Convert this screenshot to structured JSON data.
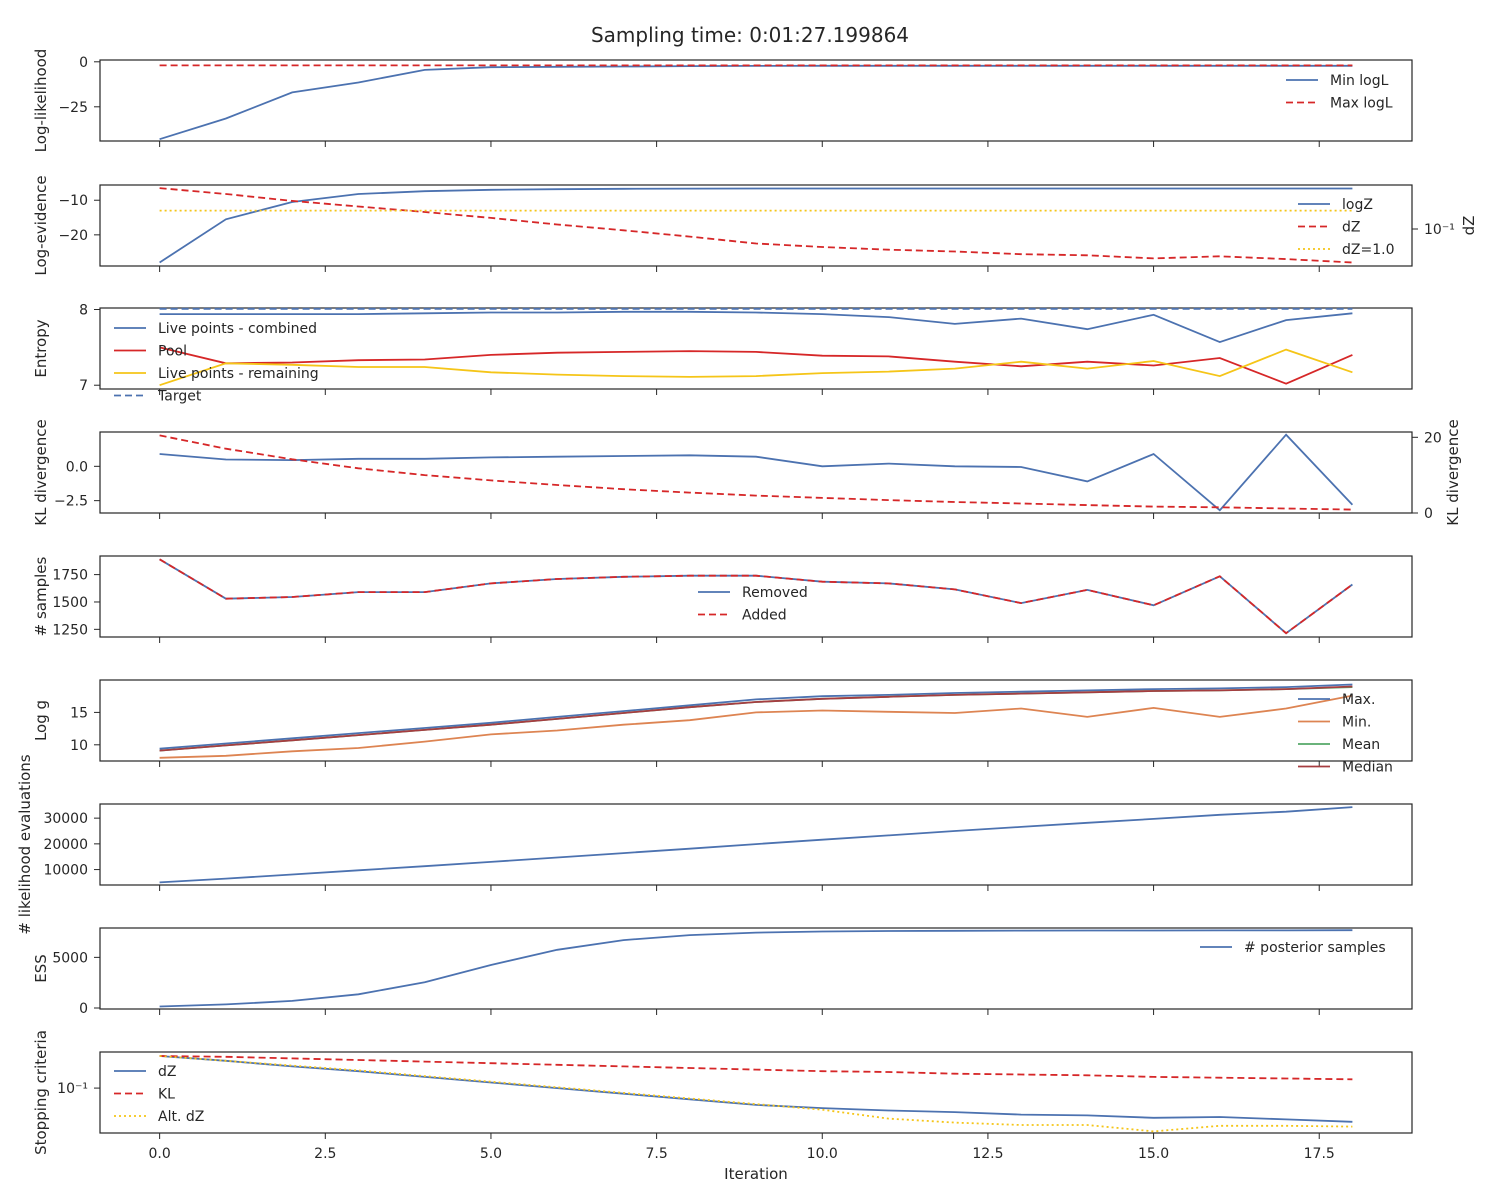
{
  "title": "Sampling time: 0:01:27.199864",
  "xlabel": "Iteration",
  "x_ticks": [
    "0.0",
    "2.5",
    "5.0",
    "7.5",
    "10.0",
    "12.5",
    "15.0",
    "17.5"
  ],
  "colors": {
    "blue": "#4c72b0",
    "red": "#d62728",
    "yellow": "#f5c518",
    "orange": "#dd8452",
    "green": "#55a868",
    "darkred": "#a63d40"
  },
  "chart_data": [
    {
      "type": "line",
      "ylabel": "Log-likelihood",
      "yticks": [
        "0",
        "−25"
      ],
      "ytick_values": [
        0,
        -25
      ],
      "ylim": [
        -44,
        1
      ],
      "x": [
        0,
        1,
        2,
        3,
        4,
        5,
        6,
        7,
        8,
        9,
        10,
        11,
        12,
        13,
        14,
        15,
        16,
        17,
        18
      ],
      "series": [
        {
          "name": "Min logL",
          "style": "solid",
          "color": "#4c72b0",
          "values": [
            -43,
            -31.5,
            -17,
            -11.5,
            -4.5,
            -3,
            -2.8,
            -2.6,
            -2.4,
            -2.3,
            -2.25,
            -2.2,
            -2.2,
            -2.2,
            -2.2,
            -2.2,
            -2.2,
            -2.2,
            -2.2
          ]
        },
        {
          "name": "Max logL",
          "style": "dashed",
          "color": "#d62728",
          "values": [
            -2,
            -2,
            -2,
            -2,
            -2,
            -2,
            -2,
            -2,
            -2,
            -2,
            -2,
            -2,
            -2,
            -2,
            -2,
            -2,
            -2,
            -2,
            -2
          ]
        }
      ],
      "legend": "upper right"
    },
    {
      "type": "line",
      "ylabel": "Log-evidence",
      "ylabel_right": "dZ",
      "yticks": [
        "−10",
        "−20"
      ],
      "ytick_values": [
        -10,
        -20
      ],
      "ylim": [
        -29,
        -5.6
      ],
      "yticks_right": [
        "10⁻¹"
      ],
      "x": [
        0,
        1,
        2,
        3,
        4,
        5,
        6,
        7,
        8,
        9,
        10,
        11,
        12,
        13,
        14,
        15,
        16,
        17,
        18
      ],
      "series": [
        {
          "name": "logZ",
          "style": "solid",
          "color": "#4c72b0",
          "values": [
            -28,
            -15.5,
            -10.5,
            -8.2,
            -7.4,
            -7.0,
            -6.8,
            -6.7,
            -6.65,
            -6.62,
            -6.61,
            -6.6,
            -6.6,
            -6.6,
            -6.6,
            -6.6,
            -6.6,
            -6.6,
            -6.6
          ]
        },
        {
          "name": "dZ",
          "style": "dashed",
          "color": "#d62728",
          "axis": "right",
          "values": [
            -6.5,
            -8.2,
            -10.2,
            -11.8,
            -13.4,
            -15.1,
            -17.0,
            -18.7,
            -20.5,
            -22.5,
            -23.5,
            -24.3,
            -24.8,
            -25.6,
            -25.9,
            -26.8,
            -26.2,
            -27.0,
            -28.0
          ]
        },
        {
          "name": "dZ=1.0",
          "style": "dotted",
          "color": "#f5c518",
          "axis": "right",
          "values": [
            -13,
            -13,
            -13,
            -13,
            -13,
            -13,
            -13,
            -13,
            -13,
            -13,
            -13,
            -13,
            -13,
            -13,
            -13,
            -13,
            -13,
            -13,
            -13
          ]
        }
      ],
      "legend": "right"
    },
    {
      "type": "line",
      "ylabel": "Entropy",
      "yticks": [
        "8",
        "7"
      ],
      "ytick_values": [
        8,
        7
      ],
      "ylim": [
        6.95,
        8.02
      ],
      "x": [
        0,
        1,
        2,
        3,
        4,
        5,
        6,
        7,
        8,
        9,
        10,
        11,
        12,
        13,
        14,
        15,
        16,
        17,
        18
      ],
      "series": [
        {
          "name": "Live points - combined",
          "style": "solid",
          "color": "#4c72b0",
          "values": [
            7.94,
            7.94,
            7.94,
            7.94,
            7.95,
            7.96,
            7.96,
            7.97,
            7.97,
            7.96,
            7.94,
            7.9,
            7.81,
            7.88,
            7.74,
            7.93,
            7.57,
            7.86,
            7.95
          ]
        },
        {
          "name": "Pool",
          "style": "solid",
          "color": "#d62728",
          "values": [
            7.5,
            7.29,
            7.3,
            7.33,
            7.34,
            7.4,
            7.43,
            7.44,
            7.45,
            7.44,
            7.39,
            7.38,
            7.31,
            7.25,
            7.31,
            7.26,
            7.36,
            7.02,
            7.4
          ]
        },
        {
          "name": "Live points - remaining",
          "style": "solid",
          "color": "#f5c518",
          "values": [
            7.0,
            7.29,
            7.27,
            7.24,
            7.24,
            7.17,
            7.14,
            7.12,
            7.11,
            7.12,
            7.16,
            7.18,
            7.22,
            7.31,
            7.22,
            7.32,
            7.12,
            7.47,
            7.17
          ]
        },
        {
          "name": "Target",
          "style": "dashed",
          "color": "#4c72b0",
          "values": [
            8.01,
            8.01,
            8.01,
            8.01,
            8.01,
            8.01,
            8.01,
            8.01,
            8.01,
            8.01,
            8.01,
            8.01,
            8.01,
            8.01,
            8.01,
            8.01,
            8.01,
            8.01,
            8.01
          ]
        }
      ],
      "legend": "upper left"
    },
    {
      "type": "line",
      "ylabel": "KL divergence",
      "ylabel_right": "KL divergence",
      "yticks": [
        "0.0",
        "−2.5"
      ],
      "ytick_values": [
        0,
        -2.5
      ],
      "ylim": [
        -3.4,
        2.5
      ],
      "yticks_right": [
        "20",
        "0"
      ],
      "ytick_values_right": [
        20,
        0
      ],
      "ylim_right": [
        0,
        21.4
      ],
      "x": [
        0,
        1,
        2,
        3,
        4,
        5,
        6,
        7,
        8,
        9,
        10,
        11,
        12,
        13,
        14,
        15,
        16,
        17,
        18
      ],
      "series": [
        {
          "name": "",
          "style": "solid",
          "color": "#4c72b0",
          "values": [
            0.9,
            0.5,
            0.45,
            0.55,
            0.55,
            0.65,
            0.7,
            0.75,
            0.8,
            0.7,
            0.0,
            0.2,
            0.0,
            -0.05,
            -1.1,
            0.9,
            -3.2,
            2.3,
            -2.8
          ]
        },
        {
          "name": "",
          "style": "dashed",
          "color": "#d62728",
          "axis": "right",
          "values": [
            20.5,
            17.0,
            14.2,
            11.8,
            10.0,
            8.6,
            7.4,
            6.3,
            5.4,
            4.6,
            4.0,
            3.4,
            2.9,
            2.5,
            2.1,
            1.7,
            1.5,
            1.2,
            0.9
          ]
        }
      ]
    },
    {
      "type": "line",
      "ylabel": "# samples",
      "yticks": [
        "1750",
        "1500",
        "1250"
      ],
      "ytick_values": [
        1750,
        1500,
        1250
      ],
      "ylim": [
        1180,
        1920
      ],
      "x": [
        0,
        1,
        2,
        3,
        4,
        5,
        6,
        7,
        8,
        9,
        10,
        11,
        12,
        13,
        14,
        15,
        16,
        17,
        18
      ],
      "series": [
        {
          "name": "Removed",
          "style": "solid",
          "color": "#4c72b0",
          "values": [
            1890,
            1530,
            1545,
            1590,
            1590,
            1670,
            1710,
            1730,
            1740,
            1740,
            1685,
            1670,
            1615,
            1490,
            1610,
            1470,
            1735,
            1215,
            1660
          ]
        },
        {
          "name": "Added",
          "style": "dashed",
          "color": "#d62728",
          "values": [
            1890,
            1530,
            1545,
            1590,
            1590,
            1670,
            1710,
            1730,
            1740,
            1740,
            1685,
            1670,
            1615,
            1490,
            1610,
            1470,
            1735,
            1215,
            1660
          ]
        }
      ],
      "legend": "center"
    },
    {
      "type": "line",
      "ylabel": "Log g",
      "yticks": [
        "15",
        "10"
      ],
      "ytick_values": [
        15,
        10
      ],
      "ylim": [
        7.5,
        20.0
      ],
      "x": [
        0,
        1,
        2,
        3,
        4,
        5,
        6,
        7,
        8,
        9,
        10,
        11,
        12,
        13,
        14,
        15,
        16,
        17,
        18
      ],
      "series": [
        {
          "name": "Max.",
          "style": "solid",
          "color": "#4c72b0",
          "values": [
            9.4,
            10.2,
            11.0,
            11.8,
            12.6,
            13.4,
            14.3,
            15.2,
            16.1,
            17.0,
            17.5,
            17.7,
            18.0,
            18.2,
            18.4,
            18.6,
            18.7,
            18.9,
            19.3
          ]
        },
        {
          "name": "Min.",
          "style": "solid",
          "color": "#dd8452",
          "values": [
            8.0,
            8.3,
            9.0,
            9.5,
            10.5,
            11.6,
            12.2,
            13.1,
            13.8,
            15.0,
            15.3,
            15.1,
            14.9,
            15.6,
            14.3,
            15.7,
            14.3,
            15.6,
            17.6
          ]
        },
        {
          "name": "Mean",
          "style": "solid",
          "color": "#55a868",
          "values": [
            9.1,
            9.9,
            10.7,
            11.5,
            12.3,
            13.1,
            14.0,
            14.9,
            15.8,
            16.6,
            17.1,
            17.4,
            17.7,
            17.9,
            18.1,
            18.3,
            18.4,
            18.6,
            18.9
          ]
        },
        {
          "name": "Median",
          "style": "solid",
          "color": "#a63d40",
          "values": [
            9.1,
            9.9,
            10.7,
            11.5,
            12.3,
            13.1,
            14.0,
            14.9,
            15.8,
            16.6,
            17.1,
            17.4,
            17.7,
            17.9,
            18.1,
            18.3,
            18.4,
            18.6,
            19.0
          ]
        }
      ],
      "legend": "right"
    },
    {
      "type": "line",
      "ylabel": "# likelihood evaluations",
      "yticks": [
        "30000",
        "20000",
        "10000"
      ],
      "ytick_values": [
        30000,
        20000,
        10000
      ],
      "ylim": [
        4000,
        35500
      ],
      "x": [
        0,
        1,
        2,
        3,
        4,
        5,
        6,
        7,
        8,
        9,
        10,
        11,
        12,
        13,
        14,
        15,
        16,
        17,
        18
      ],
      "series": [
        {
          "name": "",
          "style": "solid",
          "color": "#4c72b0",
          "values": [
            5000,
            6500,
            8100,
            9700,
            11300,
            13000,
            14700,
            16400,
            18100,
            19900,
            21600,
            23300,
            25000,
            26600,
            28200,
            29700,
            31300,
            32500,
            34300
          ]
        }
      ]
    },
    {
      "type": "line",
      "ylabel": "ESS",
      "yticks": [
        "5000",
        "0"
      ],
      "ytick_values": [
        5000,
        0
      ],
      "ylim": [
        -100,
        7900
      ],
      "x": [
        0,
        1,
        2,
        3,
        4,
        5,
        6,
        7,
        8,
        9,
        10,
        11,
        12,
        13,
        14,
        15,
        16,
        17,
        18
      ],
      "series": [
        {
          "name": "# posterior samples",
          "style": "solid",
          "color": "#4c72b0",
          "values": [
            150,
            350,
            700,
            1350,
            2550,
            4250,
            5750,
            6700,
            7200,
            7450,
            7550,
            7600,
            7620,
            7640,
            7650,
            7650,
            7660,
            7660,
            7680
          ]
        }
      ],
      "legend": "upper right"
    },
    {
      "type": "line",
      "ylabel": "Stopping criteria",
      "yticks": [
        "10⁻¹"
      ],
      "ytick_values": [
        -1
      ],
      "ylim": [
        -1.56,
        -0.55
      ],
      "yscale": "log",
      "x": [
        0,
        1,
        2,
        3,
        4,
        5,
        6,
        7,
        8,
        9,
        10,
        11,
        12,
        13,
        14,
        15,
        16,
        17,
        18
      ],
      "series": [
        {
          "name": "dZ",
          "style": "solid",
          "color": "#4c72b0",
          "values": [
            -0.6,
            -0.66,
            -0.73,
            -0.79,
            -0.86,
            -0.93,
            -1.0,
            -1.07,
            -1.14,
            -1.21,
            -1.25,
            -1.28,
            -1.3,
            -1.33,
            -1.34,
            -1.37,
            -1.36,
            -1.39,
            -1.42
          ]
        },
        {
          "name": "KL",
          "style": "dashed",
          "color": "#d62728",
          "values": [
            -0.6,
            -0.61,
            -0.63,
            -0.65,
            -0.67,
            -0.69,
            -0.71,
            -0.73,
            -0.75,
            -0.77,
            -0.79,
            -0.8,
            -0.82,
            -0.83,
            -0.84,
            -0.86,
            -0.87,
            -0.88,
            -0.89
          ]
        },
        {
          "name": "Alt. dZ",
          "style": "dotted",
          "color": "#f5c518",
          "values": [
            -0.6,
            -0.66,
            -0.72,
            -0.78,
            -0.85,
            -0.92,
            -0.99,
            -1.06,
            -1.13,
            -1.2,
            -1.27,
            -1.38,
            -1.43,
            -1.46,
            -1.46,
            -1.54,
            -1.47,
            -1.47,
            -1.48
          ]
        }
      ],
      "legend": "lower left"
    }
  ]
}
